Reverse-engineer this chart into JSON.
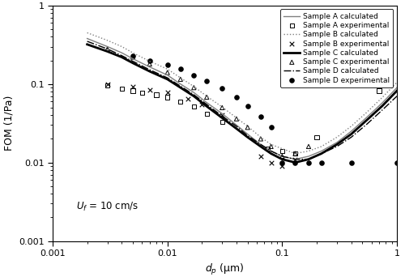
{
  "xlabel": "$d_p$ (μm)",
  "ylabel": "FOM (1/Pa)",
  "xlim": [
    0.001,
    1.0
  ],
  "ylim": [
    0.001,
    1.0
  ],
  "annotation_math": "$U_f$",
  "annotation_text": " = 10 cm/s",
  "legend_entries": [
    "Sample A calculated",
    "Sample A experimental",
    "Sample B calculated",
    "Sample B experimental",
    "Sample C calculated",
    "Sample C experimental",
    "Sample D calculated",
    "Sample D experimental"
  ],
  "sample_A_calc_x": [
    0.002,
    0.003,
    0.004,
    0.005,
    0.007,
    0.01,
    0.013,
    0.017,
    0.022,
    0.03,
    0.04,
    0.05,
    0.065,
    0.08,
    0.1,
    0.13,
    0.17,
    0.22,
    0.3,
    0.4,
    0.55,
    0.75,
    1.0
  ],
  "sample_A_calc_y": [
    0.38,
    0.3,
    0.25,
    0.21,
    0.165,
    0.13,
    0.1,
    0.078,
    0.058,
    0.042,
    0.03,
    0.023,
    0.017,
    0.014,
    0.012,
    0.011,
    0.012,
    0.014,
    0.018,
    0.025,
    0.038,
    0.058,
    0.09
  ],
  "sample_B_calc_x": [
    0.002,
    0.003,
    0.004,
    0.005,
    0.007,
    0.01,
    0.013,
    0.017,
    0.022,
    0.03,
    0.04,
    0.05,
    0.065,
    0.08,
    0.1,
    0.13,
    0.17,
    0.22,
    0.3,
    0.4,
    0.55,
    0.75,
    1.0
  ],
  "sample_B_calc_y": [
    0.45,
    0.36,
    0.3,
    0.25,
    0.195,
    0.155,
    0.12,
    0.093,
    0.07,
    0.051,
    0.037,
    0.029,
    0.021,
    0.017,
    0.015,
    0.013,
    0.014,
    0.016,
    0.021,
    0.029,
    0.044,
    0.068,
    0.105
  ],
  "sample_C_calc_x": [
    0.002,
    0.003,
    0.004,
    0.005,
    0.007,
    0.01,
    0.013,
    0.017,
    0.022,
    0.03,
    0.04,
    0.05,
    0.065,
    0.08,
    0.1,
    0.13,
    0.17,
    0.22,
    0.3,
    0.4,
    0.55,
    0.75,
    1.0
  ],
  "sample_C_calc_y": [
    0.32,
    0.26,
    0.22,
    0.185,
    0.145,
    0.115,
    0.09,
    0.07,
    0.052,
    0.037,
    0.027,
    0.021,
    0.016,
    0.013,
    0.011,
    0.01,
    0.011,
    0.013,
    0.017,
    0.023,
    0.035,
    0.053,
    0.082
  ],
  "sample_D_calc_x": [
    0.002,
    0.003,
    0.004,
    0.005,
    0.007,
    0.01,
    0.013,
    0.017,
    0.022,
    0.03,
    0.04,
    0.05,
    0.065,
    0.08,
    0.1,
    0.13,
    0.17,
    0.22,
    0.3,
    0.4,
    0.55,
    0.75,
    1.0
  ],
  "sample_D_calc_y": [
    0.35,
    0.28,
    0.23,
    0.195,
    0.152,
    0.12,
    0.094,
    0.073,
    0.055,
    0.039,
    0.029,
    0.022,
    0.017,
    0.014,
    0.012,
    0.011,
    0.011,
    0.013,
    0.016,
    0.021,
    0.031,
    0.047,
    0.07
  ],
  "sample_A_exp_x": [
    0.003,
    0.004,
    0.005,
    0.006,
    0.008,
    0.01,
    0.013,
    0.017,
    0.022,
    0.03,
    0.075,
    0.1,
    0.13,
    0.2,
    0.7
  ],
  "sample_A_exp_y": [
    0.095,
    0.088,
    0.082,
    0.078,
    0.073,
    0.068,
    0.06,
    0.052,
    0.042,
    0.033,
    0.015,
    0.014,
    0.013,
    0.021,
    0.082
  ],
  "sample_B_exp_x": [
    0.003,
    0.005,
    0.007,
    0.01,
    0.015,
    0.02,
    0.03,
    0.065,
    0.08,
    0.1,
    0.13
  ],
  "sample_B_exp_y": [
    0.1,
    0.092,
    0.085,
    0.078,
    0.065,
    0.055,
    0.04,
    0.012,
    0.01,
    0.009,
    0.011
  ],
  "sample_C_exp_x": [
    0.003,
    0.005,
    0.007,
    0.01,
    0.013,
    0.017,
    0.022,
    0.03,
    0.04,
    0.05,
    0.065,
    0.08,
    0.1,
    0.13,
    0.17
  ],
  "sample_C_exp_y": [
    0.28,
    0.22,
    0.18,
    0.14,
    0.115,
    0.09,
    0.068,
    0.05,
    0.036,
    0.028,
    0.02,
    0.016,
    0.012,
    0.013,
    0.016
  ],
  "sample_D_exp_x": [
    0.005,
    0.007,
    0.01,
    0.013,
    0.017,
    0.022,
    0.03,
    0.04,
    0.05,
    0.065,
    0.08,
    0.1,
    0.13,
    0.17,
    0.22,
    0.4,
    1.0
  ],
  "sample_D_exp_y": [
    0.23,
    0.2,
    0.175,
    0.155,
    0.13,
    0.11,
    0.088,
    0.068,
    0.052,
    0.038,
    0.028,
    0.01,
    0.01,
    0.01,
    0.01,
    0.01,
    0.01
  ]
}
